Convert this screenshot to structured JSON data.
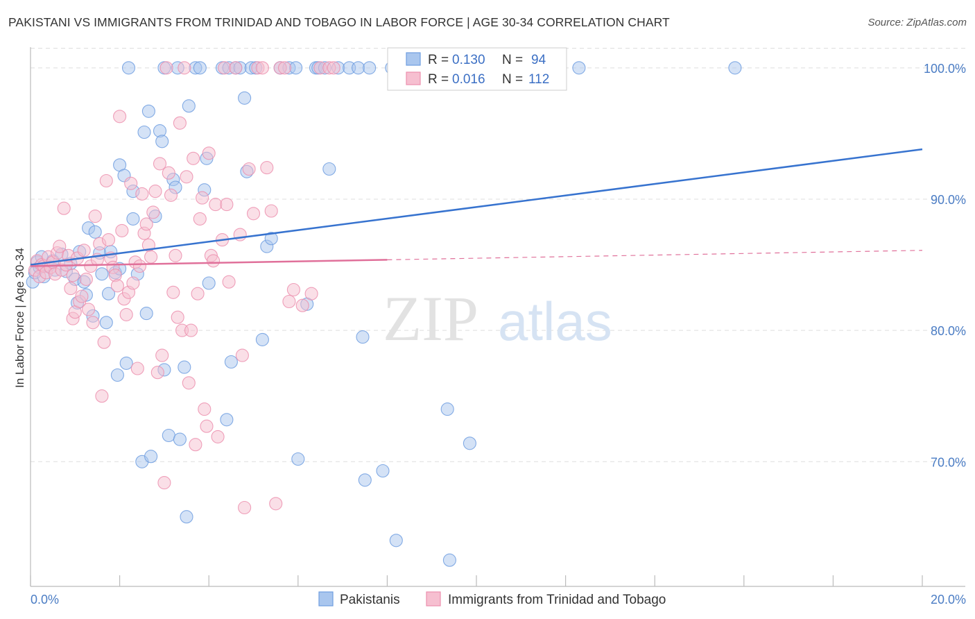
{
  "title": "PAKISTANI VS IMMIGRANTS FROM TRINIDAD AND TOBAGO IN LABOR FORCE | AGE 30-34 CORRELATION CHART",
  "source": "Source: ZipAtlas.com",
  "watermark": {
    "zip": "ZIP",
    "atlas": "atlas"
  },
  "colors": {
    "blue_fill": "#a9c6ee",
    "blue_stroke": "#6f9ee0",
    "blue_line": "#3773cf",
    "pink_fill": "#f6bfd0",
    "pink_stroke": "#ec8fae",
    "pink_line": "#e0709a",
    "grid": "#dddddd",
    "tick_text": "#4a7cc4"
  },
  "legend": {
    "rows": [
      {
        "r_label": "R = ",
        "r_value": "0.130",
        "n_label": "N = ",
        "n_value": "94"
      },
      {
        "r_label": "R = ",
        "r_value": "0.016",
        "n_label": "N = ",
        "n_value": "112"
      }
    ]
  },
  "chart_data": {
    "type": "scatter",
    "title": "PAKISTANI VS IMMIGRANTS FROM TRINIDAD AND TOBAGO IN LABOR FORCE | AGE 30-34 CORRELATION CHART",
    "xlabel": "",
    "ylabel": "In Labor Force | Age 30-34",
    "xlim": [
      0,
      20
    ],
    "ylim": [
      60.5,
      102
    ],
    "x_tick_labels": [
      "0.0%",
      "20.0%"
    ],
    "y_ticks": [
      70,
      80,
      90,
      100
    ],
    "y_tick_labels": [
      "70.0%",
      "80.0%",
      "90.0%",
      "100.0%"
    ],
    "grid": true,
    "legend_position": "top-center",
    "series": [
      {
        "name": "Pakistanis",
        "color": "blue",
        "trend": {
          "x": [
            0,
            20
          ],
          "y": [
            85.0,
            93.8
          ],
          "dashed_from": null
        },
        "points": [
          [
            0.05,
            83.7
          ],
          [
            0.1,
            84.4
          ],
          [
            0.15,
            85.2
          ],
          [
            0.2,
            84.8
          ],
          [
            0.25,
            85.6
          ],
          [
            0.3,
            84.1
          ],
          [
            0.4,
            84.9
          ],
          [
            0.5,
            85.3
          ],
          [
            0.55,
            84.6
          ],
          [
            0.7,
            85.8
          ],
          [
            0.8,
            84.5
          ],
          [
            0.9,
            85.1
          ],
          [
            1.0,
            83.9
          ],
          [
            1.05,
            82.1
          ],
          [
            1.1,
            86.0
          ],
          [
            1.2,
            83.7
          ],
          [
            1.25,
            82.7
          ],
          [
            1.3,
            87.8
          ],
          [
            1.4,
            81.1
          ],
          [
            1.45,
            87.5
          ],
          [
            1.55,
            85.9
          ],
          [
            1.6,
            84.3
          ],
          [
            1.7,
            80.6
          ],
          [
            1.75,
            82.8
          ],
          [
            1.8,
            86.0
          ],
          [
            1.9,
            84.4
          ],
          [
            2.0,
            84.7
          ],
          [
            1.95,
            76.6
          ],
          [
            2.0,
            92.6
          ],
          [
            2.1,
            91.8
          ],
          [
            2.15,
            77.5
          ],
          [
            2.2,
            100
          ],
          [
            2.3,
            88.5
          ],
          [
            2.3,
            90.6
          ],
          [
            2.4,
            84.3
          ],
          [
            2.5,
            70.0
          ],
          [
            2.55,
            95.1
          ],
          [
            2.6,
            81.3
          ],
          [
            2.65,
            96.7
          ],
          [
            2.7,
            70.4
          ],
          [
            2.8,
            88.7
          ],
          [
            2.9,
            95.2
          ],
          [
            2.95,
            94.4
          ],
          [
            3.0,
            77.0
          ],
          [
            3.0,
            100
          ],
          [
            3.1,
            72.0
          ],
          [
            3.2,
            91.5
          ],
          [
            3.25,
            90.9
          ],
          [
            3.3,
            100
          ],
          [
            3.35,
            71.7
          ],
          [
            3.45,
            77.2
          ],
          [
            3.5,
            65.8
          ],
          [
            3.55,
            97.1
          ],
          [
            3.7,
            100
          ],
          [
            3.8,
            100
          ],
          [
            3.9,
            90.7
          ],
          [
            3.95,
            93.1
          ],
          [
            4.0,
            83.6
          ],
          [
            4.3,
            100
          ],
          [
            4.4,
            73.2
          ],
          [
            4.45,
            100
          ],
          [
            4.5,
            77.6
          ],
          [
            4.6,
            100
          ],
          [
            4.7,
            100
          ],
          [
            4.8,
            97.7
          ],
          [
            4.85,
            92.1
          ],
          [
            4.95,
            100
          ],
          [
            5.05,
            100
          ],
          [
            5.2,
            79.3
          ],
          [
            5.3,
            86.4
          ],
          [
            5.4,
            87.0
          ],
          [
            5.6,
            100
          ],
          [
            5.8,
            100
          ],
          [
            5.95,
            100
          ],
          [
            6.0,
            70.2
          ],
          [
            6.2,
            82.0
          ],
          [
            6.4,
            100
          ],
          [
            6.45,
            100
          ],
          [
            6.6,
            100
          ],
          [
            6.7,
            92.3
          ],
          [
            6.9,
            100
          ],
          [
            7.15,
            100
          ],
          [
            7.35,
            100
          ],
          [
            7.45,
            79.5
          ],
          [
            7.5,
            68.6
          ],
          [
            7.6,
            100
          ],
          [
            7.9,
            69.3
          ],
          [
            8.1,
            100
          ],
          [
            8.2,
            64.0
          ],
          [
            8.5,
            100
          ],
          [
            9.35,
            74.0
          ],
          [
            9.4,
            62.5
          ],
          [
            9.85,
            71.4
          ],
          [
            12.3,
            100
          ],
          [
            15.8,
            100
          ]
        ]
      },
      {
        "name": "Immigrants from Trinidad and Tobago",
        "color": "pink",
        "trend": {
          "x": [
            0,
            20
          ],
          "y": [
            84.9,
            86.1
          ],
          "dashed_from": 8.0
        },
        "points": [
          [
            0.1,
            84.6
          ],
          [
            0.15,
            85.3
          ],
          [
            0.2,
            84.1
          ],
          [
            0.25,
            85.0
          ],
          [
            0.3,
            84.9
          ],
          [
            0.35,
            84.4
          ],
          [
            0.4,
            85.6
          ],
          [
            0.45,
            84.8
          ],
          [
            0.5,
            85.2
          ],
          [
            0.55,
            84.3
          ],
          [
            0.6,
            85.9
          ],
          [
            0.65,
            86.4
          ],
          [
            0.7,
            84.6
          ],
          [
            0.75,
            89.3
          ],
          [
            0.8,
            85.0
          ],
          [
            0.85,
            85.7
          ],
          [
            0.9,
            83.2
          ],
          [
            0.95,
            84.2
          ],
          [
            0.95,
            80.9
          ],
          [
            1.0,
            81.4
          ],
          [
            1.05,
            85.5
          ],
          [
            1.1,
            82.2
          ],
          [
            1.15,
            82.6
          ],
          [
            1.2,
            86.1
          ],
          [
            1.25,
            83.9
          ],
          [
            1.3,
            81.6
          ],
          [
            1.35,
            84.9
          ],
          [
            1.4,
            80.6
          ],
          [
            1.45,
            88.7
          ],
          [
            1.5,
            85.4
          ],
          [
            1.55,
            86.6
          ],
          [
            1.6,
            75.0
          ],
          [
            1.65,
            79.1
          ],
          [
            1.7,
            91.4
          ],
          [
            1.75,
            86.9
          ],
          [
            1.8,
            85.5
          ],
          [
            1.85,
            84.8
          ],
          [
            1.9,
            84.2
          ],
          [
            1.95,
            83.4
          ],
          [
            2.0,
            96.3
          ],
          [
            2.05,
            87.6
          ],
          [
            2.1,
            82.4
          ],
          [
            2.15,
            81.2
          ],
          [
            2.2,
            82.9
          ],
          [
            2.25,
            91.2
          ],
          [
            2.3,
            83.6
          ],
          [
            2.35,
            85.2
          ],
          [
            2.4,
            77.1
          ],
          [
            2.45,
            84.9
          ],
          [
            2.5,
            90.4
          ],
          [
            2.55,
            87.4
          ],
          [
            2.6,
            88.1
          ],
          [
            2.65,
            86.5
          ],
          [
            2.7,
            85.6
          ],
          [
            2.75,
            89.0
          ],
          [
            2.8,
            90.6
          ],
          [
            2.85,
            76.8
          ],
          [
            2.9,
            92.7
          ],
          [
            2.95,
            78.1
          ],
          [
            3.0,
            68.4
          ],
          [
            3.05,
            100
          ],
          [
            3.1,
            92.0
          ],
          [
            3.15,
            90.3
          ],
          [
            3.2,
            82.9
          ],
          [
            3.25,
            85.7
          ],
          [
            3.3,
            81.0
          ],
          [
            3.35,
            95.8
          ],
          [
            3.4,
            80.0
          ],
          [
            3.45,
            100
          ],
          [
            3.5,
            91.7
          ],
          [
            3.55,
            76.0
          ],
          [
            3.6,
            80.0
          ],
          [
            3.65,
            93.1
          ],
          [
            3.7,
            71.3
          ],
          [
            3.75,
            82.8
          ],
          [
            3.8,
            88.5
          ],
          [
            3.85,
            90.1
          ],
          [
            3.9,
            74.0
          ],
          [
            3.95,
            72.7
          ],
          [
            4.0,
            93.5
          ],
          [
            4.05,
            85.7
          ],
          [
            4.1,
            85.3
          ],
          [
            4.15,
            89.6
          ],
          [
            4.2,
            71.9
          ],
          [
            4.3,
            86.9
          ],
          [
            4.35,
            100
          ],
          [
            4.4,
            89.6
          ],
          [
            4.45,
            83.7
          ],
          [
            4.6,
            100
          ],
          [
            4.7,
            87.3
          ],
          [
            4.75,
            78.1
          ],
          [
            4.8,
            66.5
          ],
          [
            4.9,
            92.3
          ],
          [
            5.0,
            88.9
          ],
          [
            5.1,
            100
          ],
          [
            5.2,
            100
          ],
          [
            5.3,
            92.4
          ],
          [
            5.4,
            89.1
          ],
          [
            5.5,
            66.8
          ],
          [
            5.6,
            100
          ],
          [
            5.7,
            100
          ],
          [
            5.8,
            82.2
          ],
          [
            5.9,
            83.1
          ],
          [
            6.1,
            81.9
          ],
          [
            6.3,
            82.8
          ],
          [
            6.5,
            100
          ],
          [
            6.7,
            100
          ],
          [
            6.8,
            100
          ]
        ]
      }
    ]
  },
  "bottom_legend": {
    "items": [
      {
        "label": "Pakistanis"
      },
      {
        "label": "Immigrants from Trinidad and Tobago"
      }
    ]
  }
}
